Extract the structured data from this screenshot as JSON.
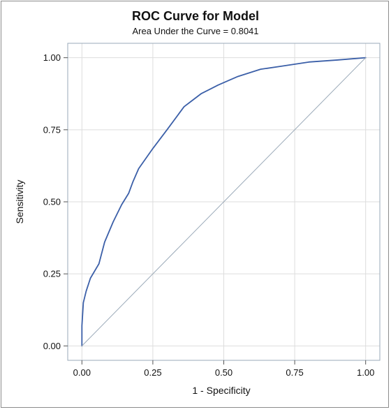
{
  "chart_data": {
    "type": "line",
    "title": "ROC Curve for Model",
    "subtitle": "Area Under the Curve = 0.8041",
    "xlabel": "1 - Specificity",
    "ylabel": "Sensitivity",
    "xlim": [
      -0.05,
      1.05
    ],
    "ylim": [
      -0.05,
      1.05
    ],
    "xticks": [
      0.0,
      0.25,
      0.5,
      0.75,
      1.0
    ],
    "yticks": [
      0.0,
      0.25,
      0.5,
      0.75,
      1.0
    ],
    "xtick_labels": [
      "0.00",
      "0.25",
      "0.50",
      "0.75",
      "1.00"
    ],
    "ytick_labels": [
      "0.00",
      "0.25",
      "0.50",
      "0.75",
      "1.00"
    ],
    "grid": true,
    "series": [
      {
        "x": [
          0.0,
          0.0,
          0.005,
          0.015,
          0.03,
          0.06,
          0.08,
          0.11,
          0.14,
          0.165,
          0.18,
          0.2,
          0.25,
          0.3,
          0.36,
          0.38,
          0.42,
          0.48,
          0.55,
          0.63,
          0.7,
          0.8,
          0.9,
          1.0
        ],
        "y": [
          0.0,
          0.07,
          0.15,
          0.19,
          0.235,
          0.285,
          0.36,
          0.43,
          0.49,
          0.53,
          0.57,
          0.615,
          0.685,
          0.75,
          0.83,
          0.845,
          0.875,
          0.905,
          0.935,
          0.96,
          0.97,
          0.985,
          0.992,
          1.0
        ],
        "color": "#3b5fa8"
      },
      {
        "x": [
          0.0,
          1.0
        ],
        "y": [
          0.0,
          1.0
        ],
        "color": "#9aa9b8"
      }
    ],
    "colors": {
      "grid": "#dddddd",
      "axis": "#9aa9b8",
      "text": "#111111"
    }
  }
}
